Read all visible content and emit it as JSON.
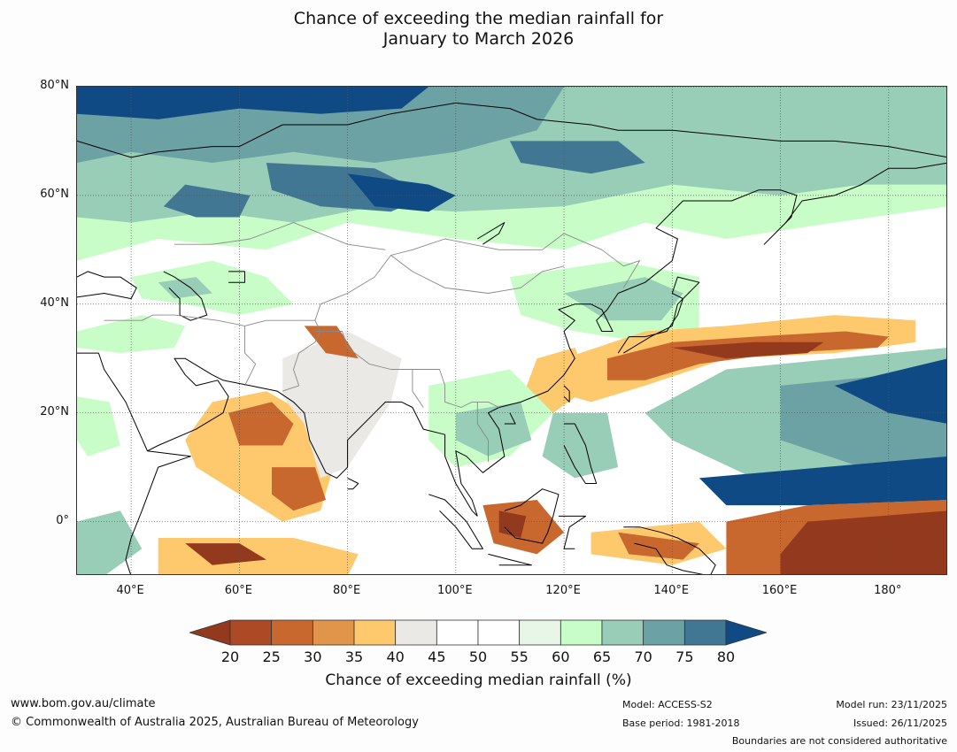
{
  "title": {
    "line1": "Chance of exceeding the median rainfall for",
    "line2": "January to March 2026"
  },
  "map": {
    "projection": "plate-carree",
    "lon_range": [
      30,
      191
    ],
    "lat_range": [
      -10,
      80
    ],
    "lat_ticks": [
      "80°N",
      "60°N",
      "40°N",
      "20°N",
      "0°"
    ],
    "lat_values": [
      80,
      60,
      40,
      20,
      0
    ],
    "lon_ticks": [
      "40°E",
      "60°E",
      "80°E",
      "100°E",
      "120°E",
      "140°E",
      "160°E",
      "180°"
    ],
    "lon_values": [
      40,
      60,
      80,
      100,
      120,
      140,
      160,
      180
    ],
    "gridlines": true
  },
  "colorbar": {
    "label": "Chance of exceeding median rainfall (%)",
    "ticks": [
      "20",
      "25",
      "30",
      "35",
      "40",
      "45",
      "50",
      "55",
      "60",
      "65",
      "70",
      "75",
      "80"
    ],
    "under_color": "#933a1e",
    "over_color": "#104a84",
    "colors": [
      "#ad4a26",
      "#c8682e",
      "#e0954a",
      "#fec96d",
      "#ebe9e5",
      "#ffffff",
      "#ffffff",
      "#e8f6e8",
      "#c8fdc8",
      "#98cdb7",
      "#6da2a5",
      "#427794"
    ]
  },
  "regions": {
    "colors": {
      "dry_strong": "#933a1e",
      "dry_mod": "#c8682e",
      "dry_weak": "#fec96d",
      "neutral": "#ebe9e5",
      "wet_weak": "#c8fdc8",
      "wet_mod": "#98cdb7",
      "wet_strong": "#6da2a5",
      "wet_vstrong": "#427794",
      "wet_max": "#104a84"
    }
  },
  "footer": {
    "url": "www.bom.gov.au/climate",
    "copyright": "© Commonwealth of Australia 2025, Australian Bureau of Meteorology",
    "model": "Model: ACCESS-S2",
    "base_period": "Base period: 1981-2018",
    "model_run": "Model run: 23/11/2025",
    "issued": "Issued: 26/11/2025",
    "disclaimer": "Boundaries are not considered authoritative"
  }
}
